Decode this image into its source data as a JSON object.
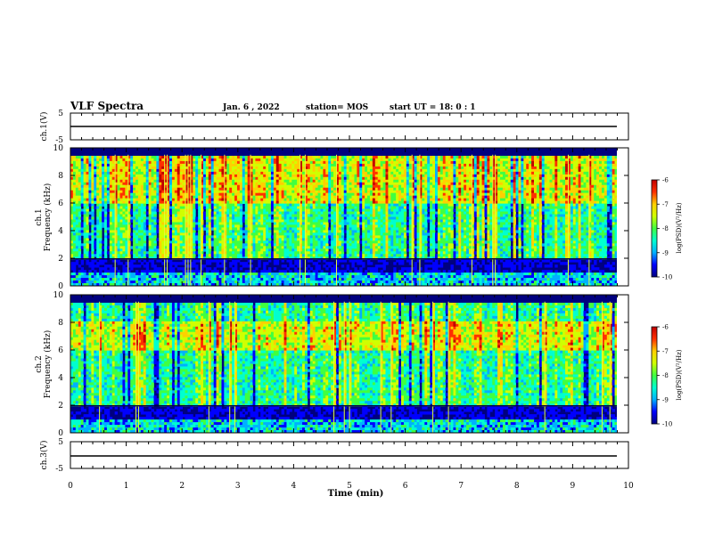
{
  "header": {
    "title": "VLF Spectra",
    "date": "Jan. 6 , 2022",
    "station": "station= MOS",
    "start": "start UT = 18: 0 : 1"
  },
  "panels": {
    "ch1_wave": {
      "ylabel": "ch.1(V)",
      "ticks": [
        "5",
        "-5"
      ]
    },
    "ch1_spec": {
      "ylabel_1": "ch.1",
      "ylabel_2": "Frequency (kHz)",
      "ticks": [
        "0",
        "2",
        "4",
        "6",
        "8",
        "10"
      ]
    },
    "ch2_spec": {
      "ylabel_1": "ch.2",
      "ylabel_2": "Frequency (kHz)",
      "ticks": [
        "0",
        "2",
        "4",
        "6",
        "8",
        "10"
      ]
    },
    "ch3_wave": {
      "ylabel": "ch.3(V)",
      "ticks": [
        "5",
        "-5"
      ]
    }
  },
  "xaxis": {
    "label": "Time (min)",
    "ticks": [
      "0",
      "1",
      "2",
      "3",
      "4",
      "5",
      "6",
      "7",
      "8",
      "9",
      "10"
    ]
  },
  "colorbar": {
    "label": "log(PSD)(V²/Hz)",
    "ticks": [
      "-6",
      "-7",
      "-8",
      "-9",
      "-10"
    ]
  },
  "colors": {
    "colormap": [
      "#00007f",
      "#0000ff",
      "#00b0ff",
      "#00ffd0",
      "#40ff40",
      "#d0ff00",
      "#ffd000",
      "#ff3000",
      "#c00000",
      "#ffffff"
    ]
  },
  "chart_data": {
    "type": "heatmap",
    "title": "VLF Spectra",
    "xlabel": "Time (min)",
    "xlim": [
      0,
      10
    ],
    "data_end_min": 9.8,
    "channels": [
      {
        "name": "ch.1",
        "ylabel": "Frequency (kHz)",
        "ylim": [
          0,
          10
        ],
        "emission_band_khz": [
          2,
          9.5
        ],
        "peak_band_khz": [
          6,
          9.5
        ],
        "quiet_band_khz": [
          1,
          2
        ]
      },
      {
        "name": "ch.2",
        "ylabel": "Frequency (kHz)",
        "ylim": [
          0,
          10
        ],
        "emission_band_khz": [
          2,
          9.5
        ],
        "peak_band_khz": [
          6,
          8
        ],
        "quiet_band_khz": [
          1,
          2
        ]
      }
    ],
    "waveforms": [
      {
        "name": "ch.1(V)",
        "ylim": [
          -5,
          5
        ],
        "level": 0
      },
      {
        "name": "ch.3(V)",
        "ylim": [
          -5,
          5
        ],
        "level": 0
      }
    ],
    "colorbar_range_log_psd": [
      -10,
      -6
    ]
  }
}
